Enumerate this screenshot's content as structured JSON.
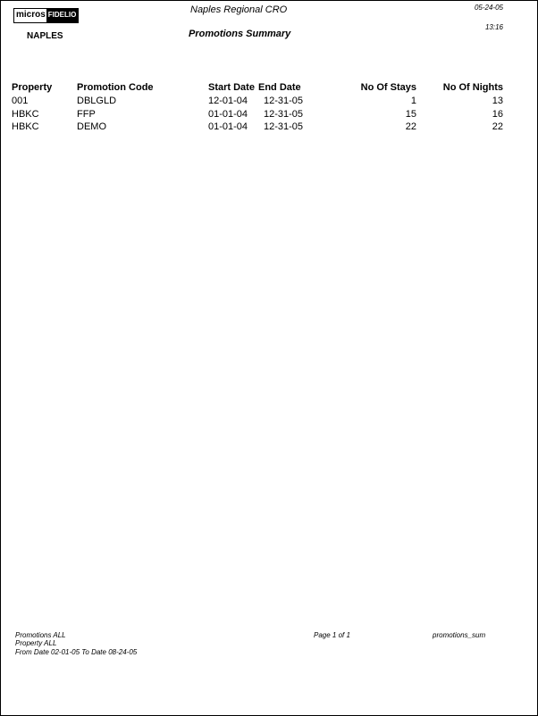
{
  "header": {
    "logo": "micros FIDELIO",
    "logo_left": "micros",
    "logo_right": "FIDELIO",
    "org": "Naples Regional CRO",
    "date": "05-24-05",
    "time": "13:16",
    "property": "NAPLES",
    "title": "Promotions Summary"
  },
  "table": {
    "columns": [
      "Property",
      "Promotion Code",
      "Start Date",
      "End Date",
      "No Of Stays",
      "No Of Nights"
    ],
    "rows": [
      [
        "001",
        "DBLGLD",
        "12-01-04",
        "12-31-05",
        "1",
        "13"
      ],
      [
        "HBKC",
        "FFP",
        "01-01-04",
        "12-31-05",
        "15",
        "16"
      ],
      [
        "HBKC",
        "DEMO",
        "01-01-04",
        "12-31-05",
        "22",
        "22"
      ]
    ]
  },
  "footer": {
    "line1": "Promotions   ALL",
    "line2": "Property   ALL",
    "line3": "From Date  02-01-05     To Date  08-24-05",
    "page": "Page 1 of 1",
    "report": "promotions_sum"
  }
}
